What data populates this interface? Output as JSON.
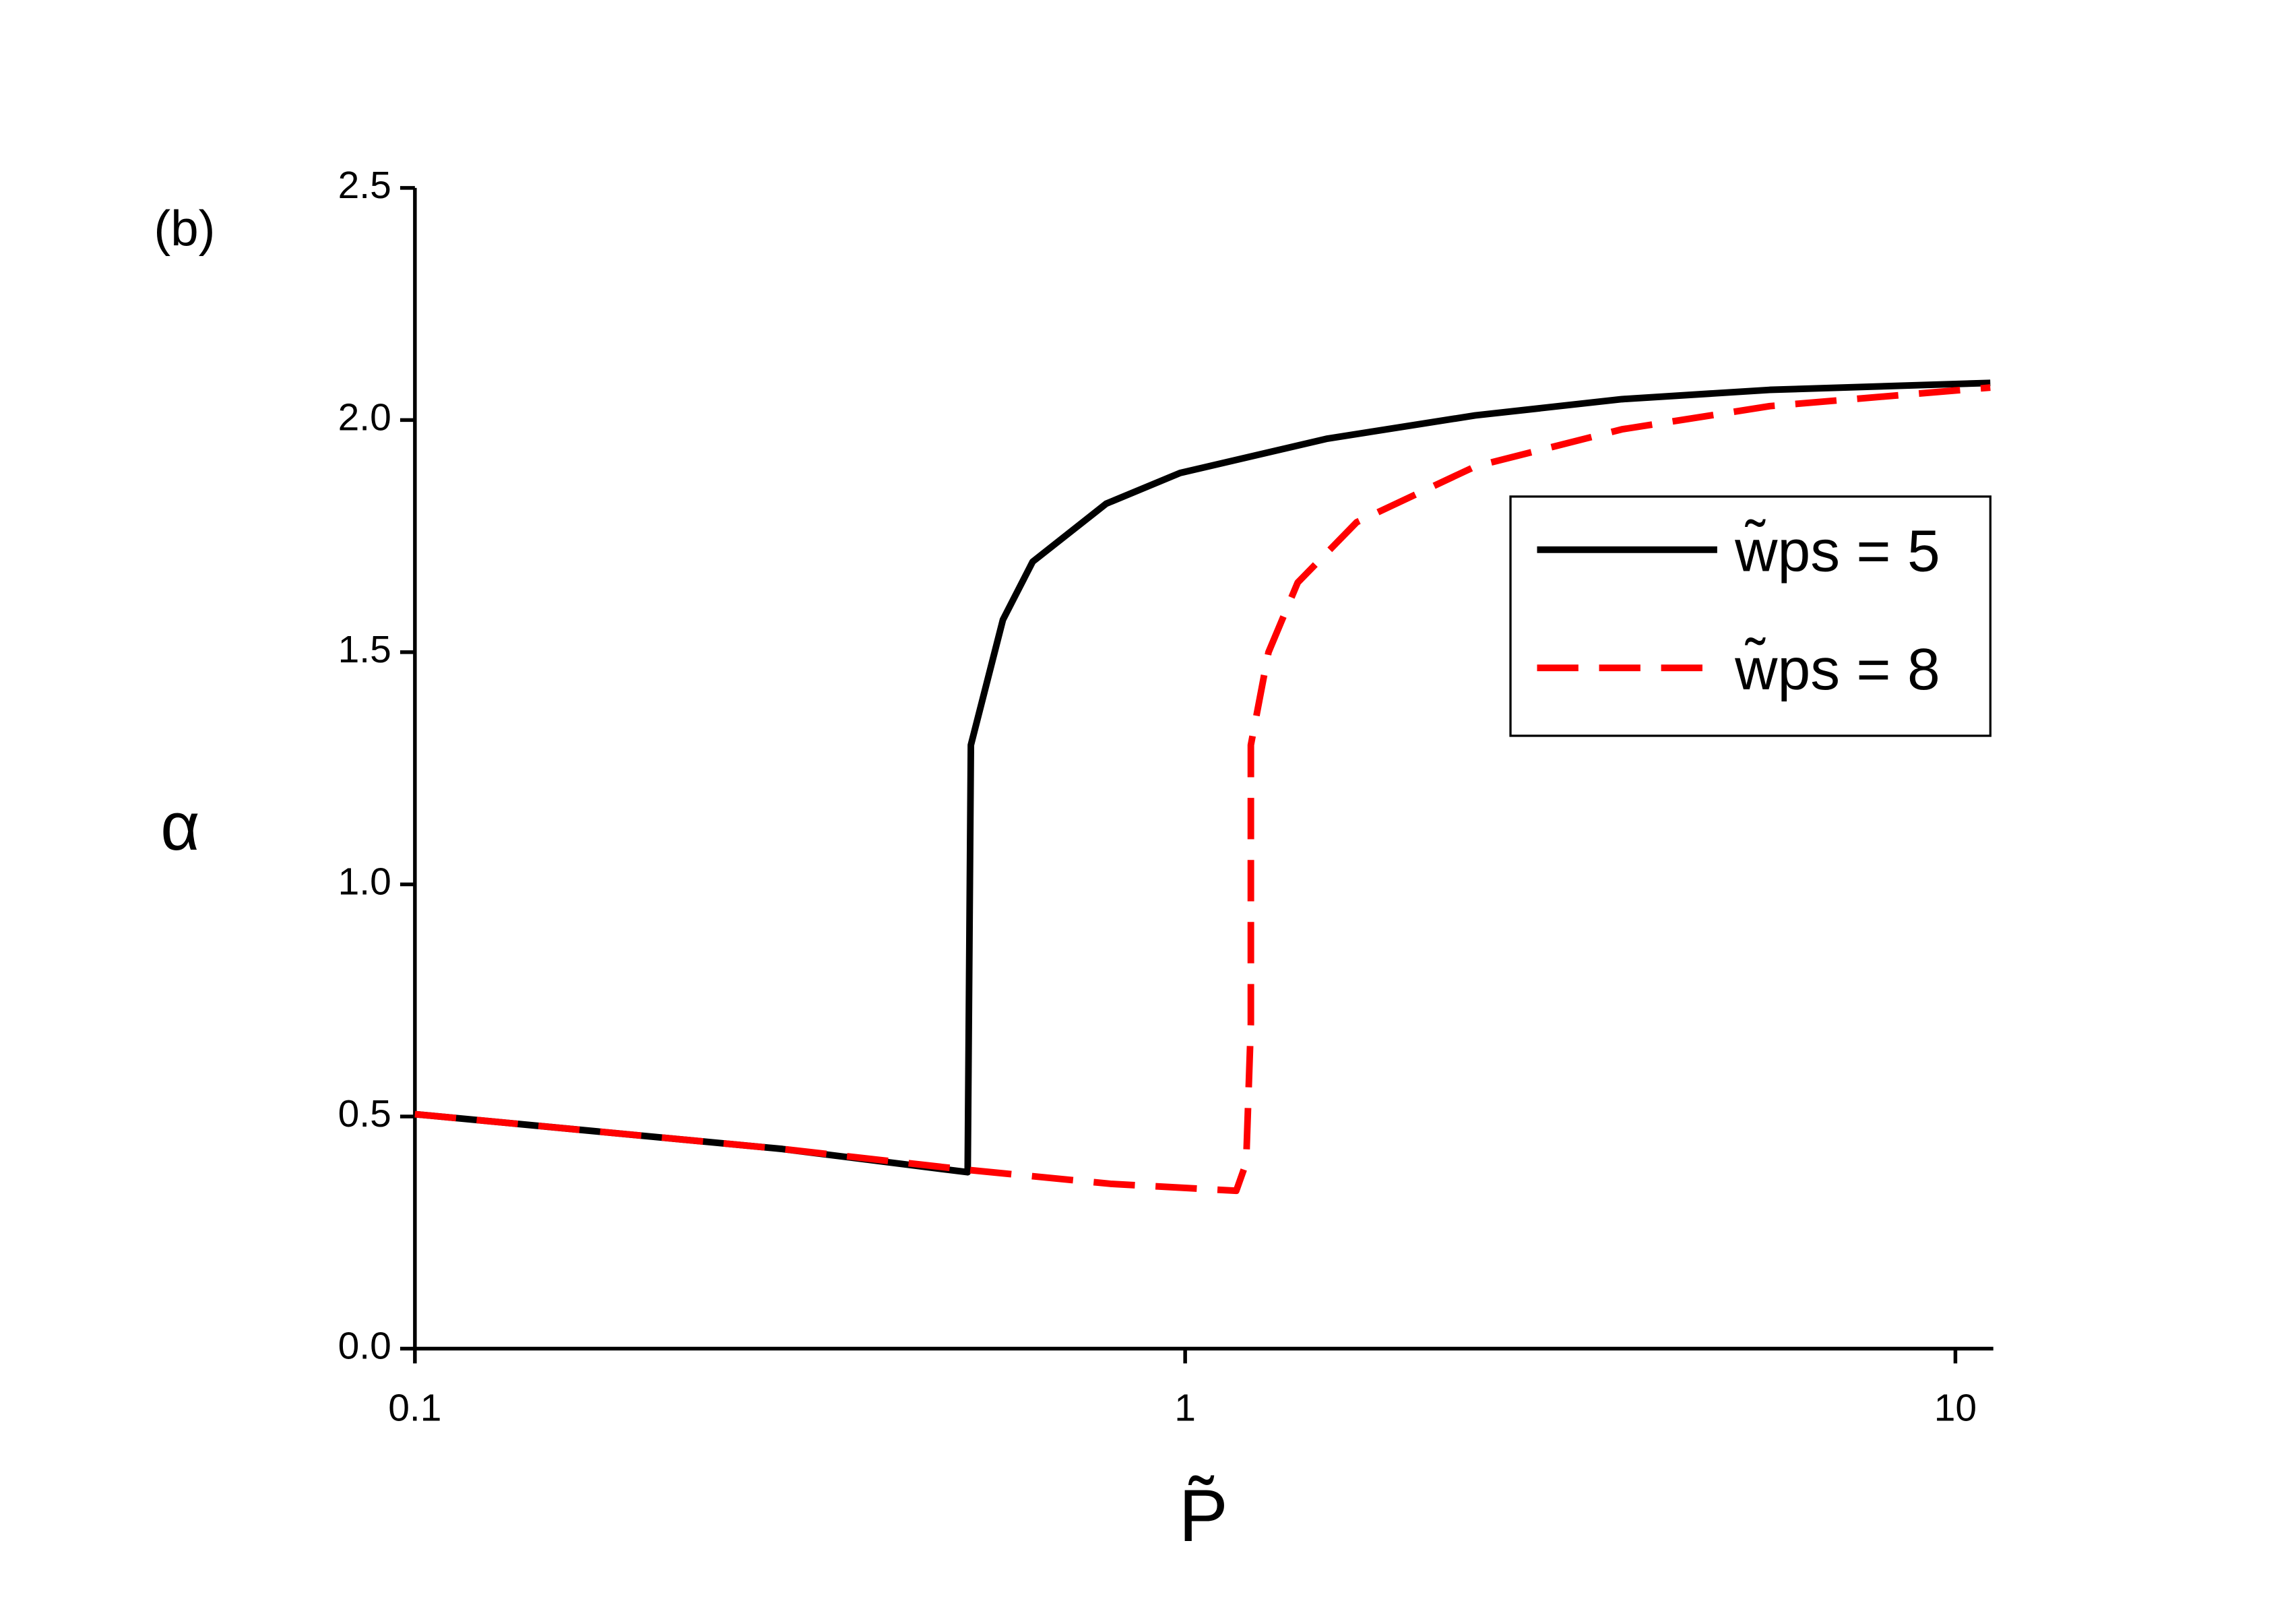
{
  "chart_data": {
    "type": "line",
    "annotation": "(b)",
    "x_label": "P̃",
    "y_label": "α",
    "log_x": true,
    "xlim": [
      0.1,
      11.2
    ],
    "xticks": [
      0.1,
      1,
      10
    ],
    "ylim": [
      0,
      2.5
    ],
    "yticks": [
      {
        "value": 0,
        "label": "0.0"
      },
      0.5,
      {
        "value": 1,
        "label": "1.0"
      },
      1.5,
      {
        "value": 2,
        "label": "2.0"
      },
      2.5
    ],
    "legend": "upper right",
    "series": [
      {
        "name": "w̃ps = 5",
        "color": "#000000",
        "dash": false,
        "x": [
          0.1,
          0.3,
          0.522,
          0.527,
          0.58,
          0.634,
          0.79,
          0.985,
          1.53,
          2.38,
          3.69,
          5.74,
          11.1
        ],
        "values": [
          0.505,
          0.43,
          0.38,
          1.3,
          1.57,
          1.695,
          1.82,
          1.886,
          1.96,
          2.01,
          2.045,
          2.065,
          2.08
        ]
      },
      {
        "name": "w̃ps = 8",
        "color": "#ff0000",
        "dash": true,
        "x": [
          0.1,
          0.3,
          0.522,
          0.8,
          1.165,
          1.2,
          1.217,
          1.217,
          1.217,
          1.283,
          1.4,
          1.67,
          2.38,
          3.69,
          5.74,
          11.1
        ],
        "values": [
          0.505,
          0.43,
          0.385,
          0.355,
          0.34,
          0.4,
          0.7,
          1.0,
          1.3,
          1.5,
          1.65,
          1.78,
          1.9,
          1.98,
          2.03,
          2.07
        ]
      }
    ]
  }
}
